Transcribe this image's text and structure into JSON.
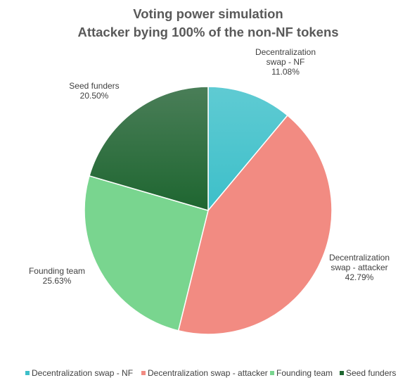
{
  "chart_data": {
    "type": "pie",
    "title": [
      "Voting power simulation",
      "Attacker bying 100% of the non-NF tokens"
    ],
    "slices": [
      {
        "label_lines": [
          "Decentralization",
          "swap - NF"
        ],
        "legend": "Decentralization swap - NF",
        "value": 11.08,
        "value_label": "11.08%",
        "color": "#3DBFC9",
        "color_light": "#5FCBD3"
      },
      {
        "label_lines": [
          "Decentralization",
          "swap - attacker"
        ],
        "legend": "Decentralization swap - attacker",
        "value": 42.79,
        "value_label": "42.79%",
        "color": "#F28B82",
        "color_light": "#F28B82"
      },
      {
        "label_lines": [
          "Founding team"
        ],
        "legend": "Founding team",
        "value": 25.63,
        "value_label": "25.63%",
        "color": "#79D58F",
        "color_light": "#79D58F"
      },
      {
        "label_lines": [
          "Seed funders"
        ],
        "legend": "Seed funders",
        "value": 20.5,
        "value_label": "20.50%",
        "color": "#1E6630",
        "color_light": "#4A7E58"
      }
    ],
    "legend_position": "bottom"
  }
}
